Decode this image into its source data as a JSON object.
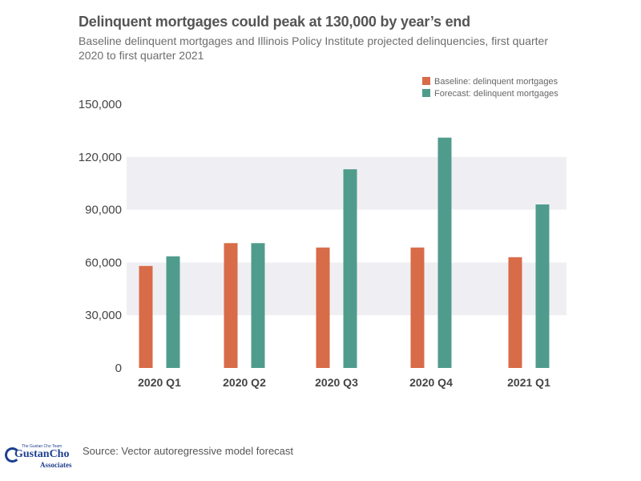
{
  "header": {
    "title": "Delinquent mortgages could peak at 130,000 by year’s end",
    "subtitle": "Baseline delinquent mortgages and Illinois Policy Institute projected delinquencies, first quarter 2020 to first quarter 2021"
  },
  "chart_data": {
    "type": "bar",
    "categories": [
      "2020 Q1",
      "2020 Q2",
      "2020 Q3",
      "2020 Q4",
      "2021 Q1"
    ],
    "series": [
      {
        "name": "Baseline: delinquent mortgages",
        "color": "#d86b48",
        "values": [
          58000,
          71000,
          68500,
          68500,
          63000
        ]
      },
      {
        "name": "Forecast: delinquent mortgages",
        "color": "#4f9c8d",
        "values": [
          63500,
          71000,
          113000,
          131000,
          93000
        ]
      }
    ],
    "yticks": [
      0,
      30000,
      60000,
      90000,
      120000,
      150000
    ],
    "ytick_labels": [
      "0",
      "30,000",
      "60,000",
      "90,000",
      "120,000",
      "150,000"
    ],
    "ylim": [
      0,
      150000
    ],
    "legend_position": "top-right",
    "band_color": "#efeff3"
  },
  "footer": {
    "source": "Source:  Vector autoregressive model forecast",
    "logo": {
      "tagline": "The Gustan Cho Team",
      "name": "GustanCho",
      "sub": "Associates"
    }
  }
}
